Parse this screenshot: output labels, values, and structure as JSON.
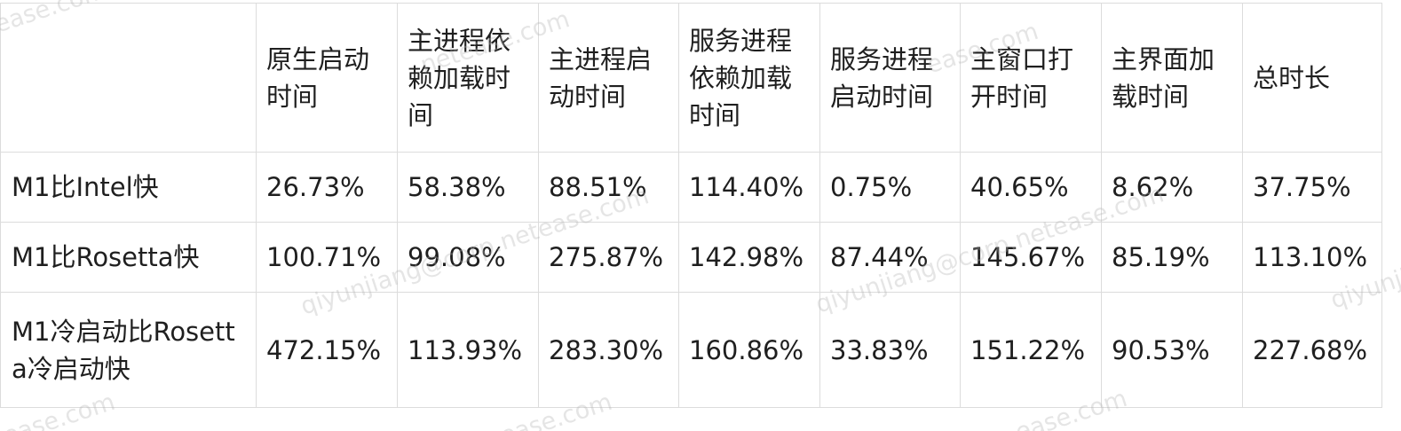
{
  "table": {
    "header": [
      "",
      "原生启动时间",
      "主进程依赖加载时间",
      "主进程启动时间",
      "服务进程依赖加载时间",
      "服务进程启动时间",
      "主窗口打开时间",
      "主界面加载时间",
      "总时长"
    ],
    "rows": [
      [
        "M1比Intel快",
        "26.73%",
        "58.38%",
        "88.51%",
        "114.40%",
        "0.75%",
        "40.65%",
        "8.62%",
        "37.75%"
      ],
      [
        "M1比Rosetta快",
        "100.71%",
        "99.08%",
        "275.87%",
        "142.98%",
        "87.44%",
        "145.67%",
        "85.19%",
        "113.10%"
      ],
      [
        "M1冷启动比Rosetta冷启动快",
        "472.15%",
        "113.93%",
        "283.30%",
        "160.86%",
        "33.83%",
        "151.22%",
        "90.53%",
        "227.68%"
      ]
    ]
  },
  "watermark": {
    "text_a": "netease.com",
    "text_b": "qiyunjiang@corp.netease.com",
    "text_c": "qiyunjiang",
    "text_d": "ease.com"
  }
}
